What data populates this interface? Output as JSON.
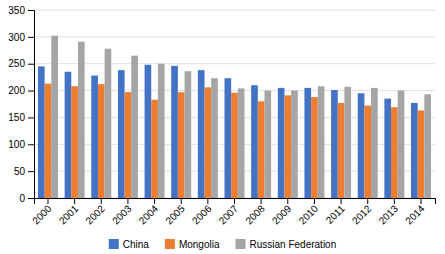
{
  "chart_data": {
    "type": "bar",
    "categories": [
      "2000",
      "2001",
      "2002",
      "2003",
      "2004",
      "2005",
      "2006",
      "2007",
      "2008",
      "2009",
      "2010",
      "2011",
      "2012",
      "2013",
      "2014"
    ],
    "series": [
      {
        "name": "China",
        "color": "#4472C4",
        "values": [
          245,
          235,
          228,
          238,
          248,
          246,
          238,
          223,
          210,
          205,
          205,
          201,
          195,
          185,
          177
        ]
      },
      {
        "name": "Mongolia",
        "color": "#ED7D31",
        "values": [
          213,
          208,
          212,
          197,
          183,
          197,
          206,
          196,
          180,
          191,
          188,
          177,
          172,
          169,
          163
        ]
      },
      {
        "name": "Russian Federation",
        "color": "#A5A5A5",
        "values": [
          302,
          291,
          278,
          265,
          250,
          236,
          223,
          204,
          200,
          200,
          208,
          207,
          205,
          200,
          193
        ]
      }
    ],
    "ylim": [
      0,
      350
    ],
    "yticks": [
      0,
      50,
      100,
      150,
      200,
      250,
      300,
      350
    ],
    "grid": true,
    "legend": "bottom"
  }
}
